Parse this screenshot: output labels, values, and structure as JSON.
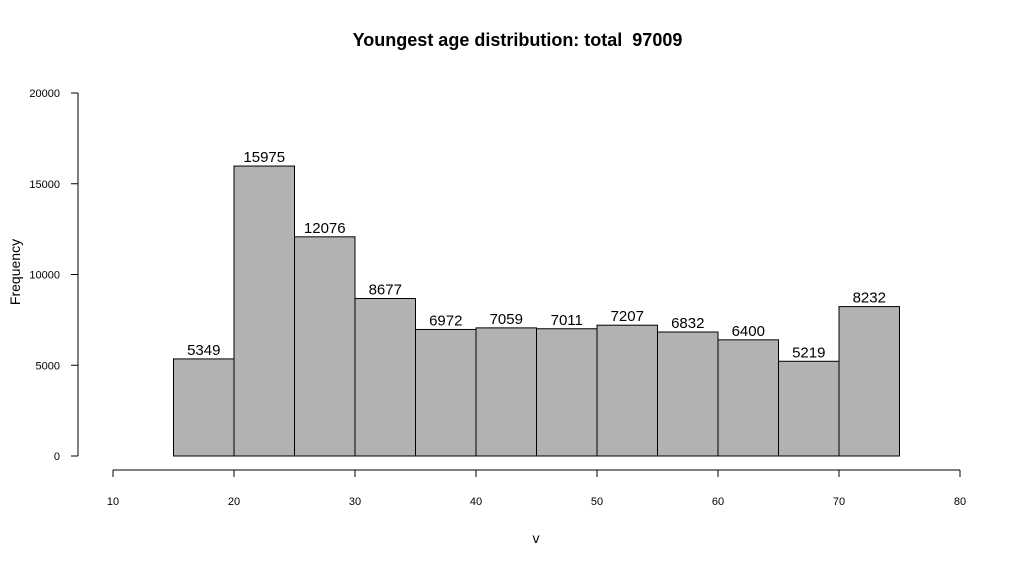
{
  "chart_data": {
    "type": "bar",
    "title": "Youngest age distribution: total  97009",
    "xlabel": "v",
    "ylabel": "Frequency",
    "bins": [
      {
        "start": 15,
        "end": 20,
        "count": 5349
      },
      {
        "start": 20,
        "end": 25,
        "count": 15975
      },
      {
        "start": 25,
        "end": 30,
        "count": 12076
      },
      {
        "start": 30,
        "end": 35,
        "count": 8677
      },
      {
        "start": 35,
        "end": 40,
        "count": 6972
      },
      {
        "start": 40,
        "end": 45,
        "count": 7059
      },
      {
        "start": 45,
        "end": 50,
        "count": 7011
      },
      {
        "start": 50,
        "end": 55,
        "count": 7207
      },
      {
        "start": 55,
        "end": 60,
        "count": 6832
      },
      {
        "start": 60,
        "end": 65,
        "count": 6400
      },
      {
        "start": 65,
        "end": 70,
        "count": 5219
      },
      {
        "start": 70,
        "end": 75,
        "count": 8232
      }
    ],
    "xlim": [
      10,
      80
    ],
    "ylim": [
      0,
      20000
    ],
    "xticks": [
      "10",
      "20",
      "30",
      "40",
      "50",
      "60",
      "70",
      "80"
    ],
    "yticks": [
      "0",
      "5000",
      "10000",
      "15000",
      "20000"
    ],
    "grid": false,
    "bar_color": "#b2b2b2",
    "bar_edge_color": "#000000"
  }
}
